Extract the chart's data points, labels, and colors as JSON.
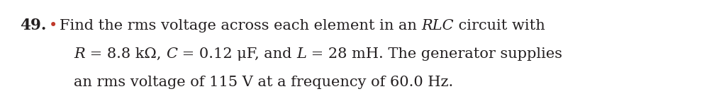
{
  "number": "49.",
  "bullet": "•",
  "line1_parts": [
    {
      "text": "Find the rms voltage across each element in an ",
      "style": "normal"
    },
    {
      "text": "RLC",
      "style": "italic"
    },
    {
      "text": " circuit with",
      "style": "normal"
    }
  ],
  "line2_parts": [
    {
      "text": "R",
      "style": "italic"
    },
    {
      "text": " = 8.8 kΩ, ",
      "style": "normal"
    },
    {
      "text": "C",
      "style": "italic"
    },
    {
      "text": " = 0.12 μF, and ",
      "style": "normal"
    },
    {
      "text": "L",
      "style": "italic"
    },
    {
      "text": " = 28 mH. The generator supplies",
      "style": "normal"
    }
  ],
  "line3": "an rms voltage of 115 V at a frequency of 60.0 Hz.",
  "font_size": 15.0,
  "number_fontsize": 15.5,
  "text_color": "#231F20",
  "bullet_color": "#c0392b",
  "bg_color": "#ffffff"
}
